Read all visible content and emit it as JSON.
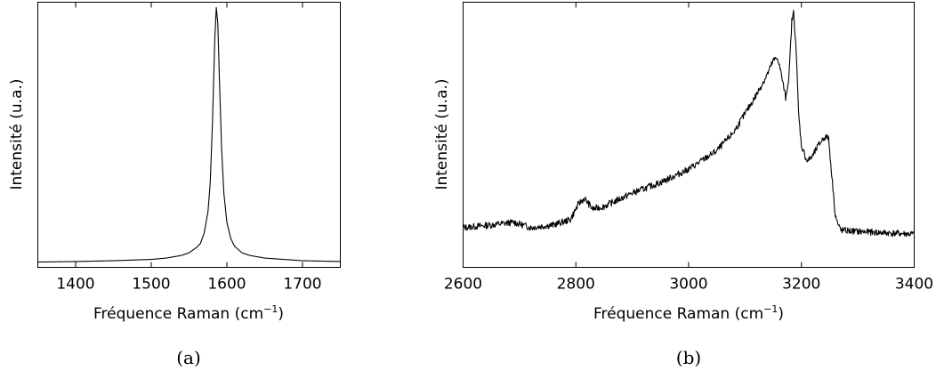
{
  "chart_data": [
    {
      "type": "line",
      "caption": "(a)",
      "title": "",
      "xlabel": "Fréquence Raman (cm",
      "xlabel_sup": "−1",
      "xlabel_end": ")",
      "ylabel": "Intensité (u.a.)",
      "xlim": [
        1350,
        1750
      ],
      "ylim": [
        0,
        1
      ],
      "xticks": [
        1400,
        1500,
        1600,
        1700
      ],
      "grid": false,
      "y_tick_labels": false,
      "series": [
        {
          "x": [
            1350,
            1400,
            1450,
            1500,
            1520,
            1540,
            1550,
            1560,
            1565,
            1570,
            1575,
            1578,
            1581,
            1584,
            1586,
            1588,
            1590,
            1593,
            1596,
            1600,
            1605,
            1610,
            1620,
            1630,
            1650,
            1700,
            1750
          ],
          "y": [
            0.02,
            0.022,
            0.025,
            0.03,
            0.035,
            0.045,
            0.055,
            0.075,
            0.09,
            0.13,
            0.21,
            0.32,
            0.55,
            0.86,
            0.98,
            0.92,
            0.72,
            0.45,
            0.28,
            0.17,
            0.11,
            0.08,
            0.055,
            0.045,
            0.035,
            0.025,
            0.022
          ]
        }
      ]
    },
    {
      "type": "line",
      "caption": "(b)",
      "title": "",
      "xlabel": "Fréquence Raman (cm",
      "xlabel_sup": "−1",
      "xlabel_end": ")",
      "ylabel": "Intensité (u.a.)",
      "xlim": [
        2600,
        3400
      ],
      "ylim": [
        0,
        1
      ],
      "xticks": [
        2600,
        2800,
        3000,
        3200,
        3400
      ],
      "grid": false,
      "y_tick_labels": false,
      "series": [
        {
          "x": [
            2600,
            2650,
            2690,
            2720,
            2760,
            2790,
            2805,
            2815,
            2830,
            2850,
            2900,
            2950,
            3000,
            3050,
            3080,
            3100,
            3120,
            3140,
            3150,
            3158,
            3165,
            3172,
            3178,
            3183,
            3186,
            3190,
            3195,
            3200,
            3210,
            3220,
            3230,
            3240,
            3248,
            3255,
            3260,
            3265,
            3270,
            3300,
            3350,
            3400
          ],
          "y": [
            0.15,
            0.16,
            0.17,
            0.15,
            0.16,
            0.18,
            0.24,
            0.26,
            0.22,
            0.23,
            0.28,
            0.32,
            0.37,
            0.44,
            0.51,
            0.58,
            0.65,
            0.73,
            0.78,
            0.79,
            0.72,
            0.64,
            0.72,
            0.93,
            0.96,
            0.85,
            0.58,
            0.46,
            0.4,
            0.42,
            0.46,
            0.49,
            0.49,
            0.32,
            0.2,
            0.16,
            0.14,
            0.135,
            0.13,
            0.125
          ]
        }
      ]
    }
  ]
}
